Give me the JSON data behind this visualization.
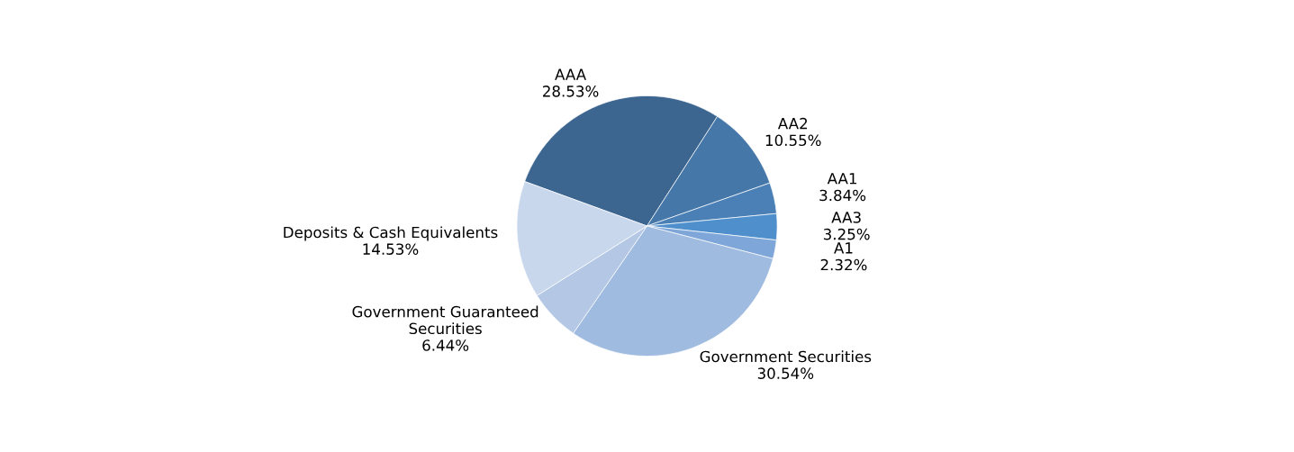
{
  "chart_data": {
    "type": "pie",
    "categories": [
      "AAA",
      "AA2",
      "AA1",
      "AA3",
      "A1",
      "Government Securities",
      "Government Guaranteed\nSecurities",
      "Deposits & Cash Equivalents"
    ],
    "values": [
      28.53,
      10.55,
      3.84,
      3.25,
      2.32,
      30.54,
      6.44,
      14.53
    ],
    "value_labels": [
      "28.53%",
      "10.55%",
      "3.84%",
      "3.25%",
      "2.32%",
      "30.54%",
      "6.44%",
      "14.53%"
    ],
    "colors": [
      "#3c6590",
      "#4577a8",
      "#4a80b5",
      "#4f8fcc",
      "#7fa6d8",
      "#a0bbe0",
      "#b4c8e6",
      "#c8d7ec"
    ]
  }
}
